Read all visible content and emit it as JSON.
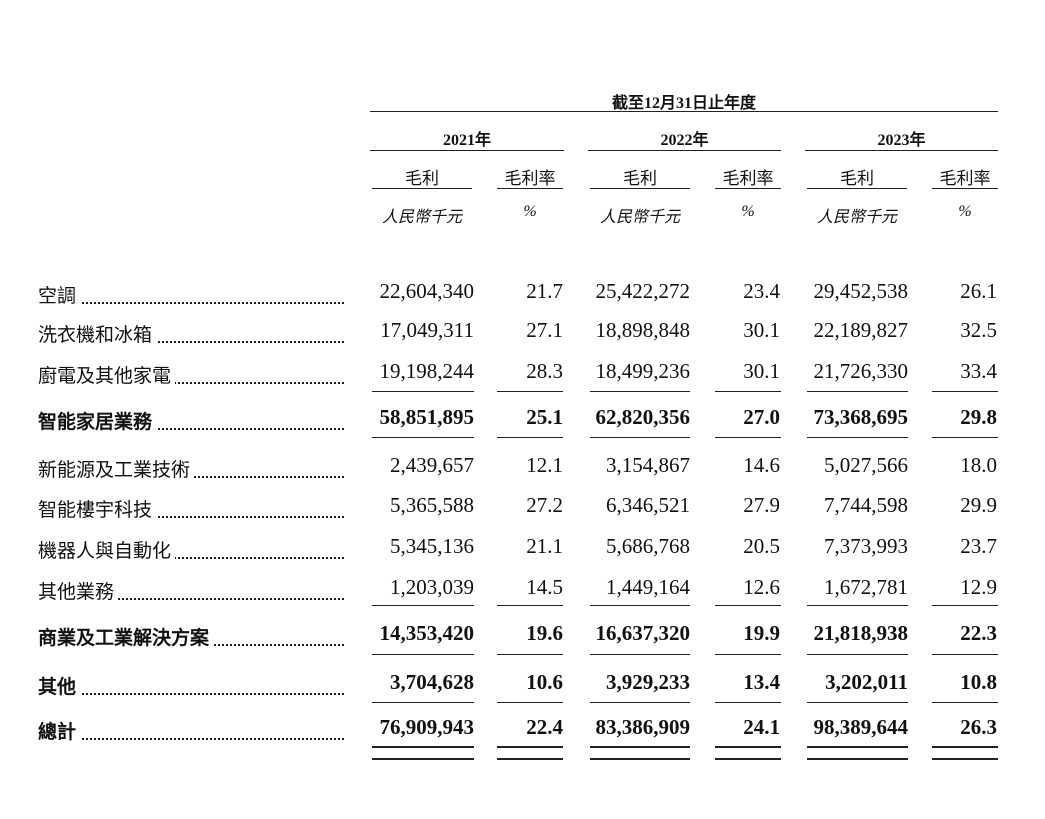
{
  "header": {
    "period": "截至12月31日止年度",
    "years": [
      "2021年",
      "2022年",
      "2023年"
    ],
    "columns": [
      "毛利",
      "毛利率",
      "毛利",
      "毛利率",
      "毛利",
      "毛利率"
    ],
    "units": [
      "人民幣千元",
      "%",
      "人民幣千元",
      "%",
      "人民幣千元",
      "%"
    ]
  },
  "rows": [
    {
      "label": "空調",
      "values": [
        "22,604,340",
        "21.7",
        "25,422,272",
        "23.4",
        "29,452,538",
        "26.1"
      ]
    },
    {
      "label": "洗衣機和冰箱",
      "values": [
        "17,049,311",
        "27.1",
        "18,898,848",
        "30.1",
        "22,189,827",
        "32.5"
      ]
    },
    {
      "label": "廚電及其他家電",
      "values": [
        "19,198,244",
        "28.3",
        "18,499,236",
        "30.1",
        "21,726,330",
        "33.4"
      ]
    },
    {
      "label": "智能家居業務",
      "values": [
        "58,851,895",
        "25.1",
        "62,820,356",
        "27.0",
        "73,368,695",
        "29.8"
      ]
    },
    {
      "label": "新能源及工業技術",
      "values": [
        "2,439,657",
        "12.1",
        "3,154,867",
        "14.6",
        "5,027,566",
        "18.0"
      ]
    },
    {
      "label": "智能樓宇科技",
      "values": [
        "5,365,588",
        "27.2",
        "6,346,521",
        "27.9",
        "7,744,598",
        "29.9"
      ]
    },
    {
      "label": "機器人與自動化",
      "values": [
        "5,345,136",
        "21.1",
        "5,686,768",
        "20.5",
        "7,373,993",
        "23.7"
      ]
    },
    {
      "label": "其他業務",
      "values": [
        "1,203,039",
        "14.5",
        "1,449,164",
        "12.6",
        "1,672,781",
        "12.9"
      ]
    },
    {
      "label": "商業及工業解決方案",
      "values": [
        "14,353,420",
        "19.6",
        "16,637,320",
        "19.9",
        "21,818,938",
        "22.3"
      ]
    },
    {
      "label": "其他",
      "values": [
        "3,704,628",
        "10.6",
        "3,929,233",
        "13.4",
        "3,202,011",
        "10.8"
      ]
    },
    {
      "label": "總計",
      "values": [
        "76,909,943",
        "22.4",
        "83,386,909",
        "24.1",
        "98,389,644",
        "26.3"
      ]
    }
  ]
}
